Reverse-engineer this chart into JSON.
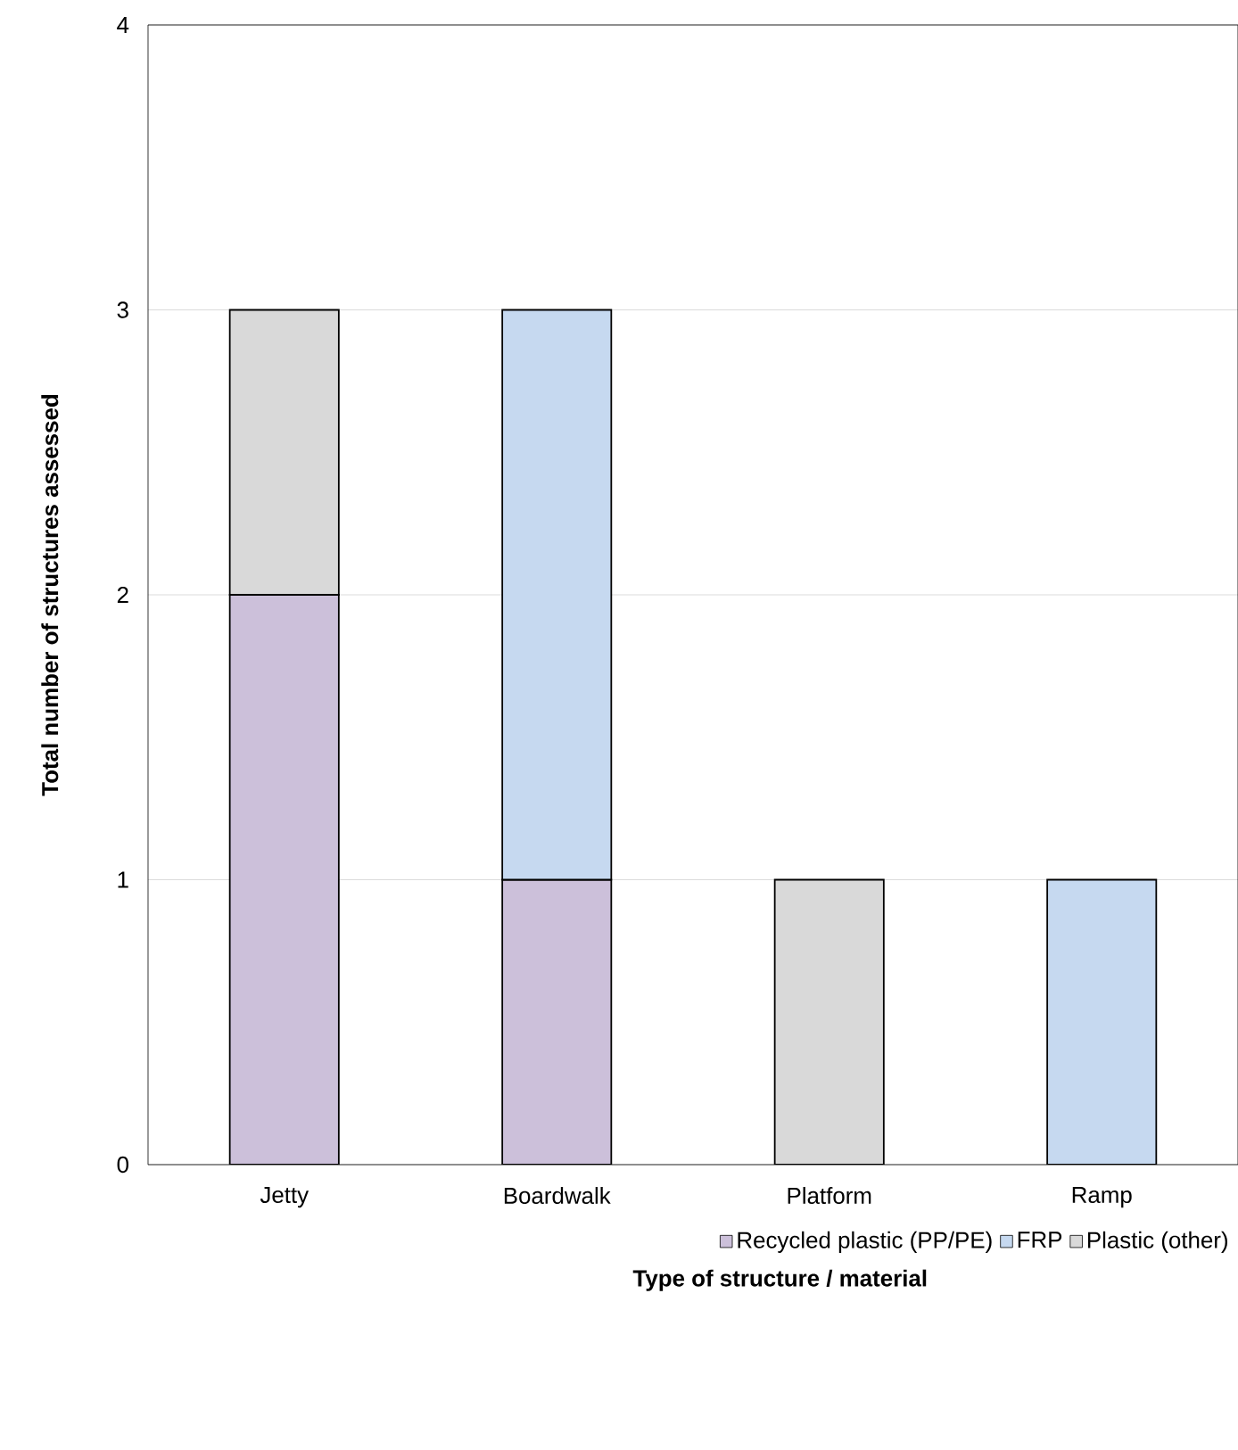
{
  "chart_data": {
    "type": "bar",
    "stacked": true,
    "xlabel": "Type of structure / material",
    "ylabel": "Total number of structures assessed",
    "categories": [
      "Jetty",
      "Boardwalk",
      "Platform",
      "Ramp"
    ],
    "series": [
      {
        "name": "Recycled plastic (PP/PE)",
        "color": "#ccc0da",
        "values": [
          2,
          1,
          null,
          null
        ]
      },
      {
        "name": "FRP",
        "color": "#c6d9f0",
        "values": [
          null,
          2,
          null,
          1
        ]
      },
      {
        "name": "Plastic (other)",
        "color": "#d9d9d9",
        "values": [
          1,
          null,
          1,
          null
        ]
      }
    ],
    "ylim": [
      0,
      4
    ],
    "yticks": [
      0,
      1,
      2,
      3,
      4
    ],
    "grid": "y",
    "legend": "bottom"
  }
}
